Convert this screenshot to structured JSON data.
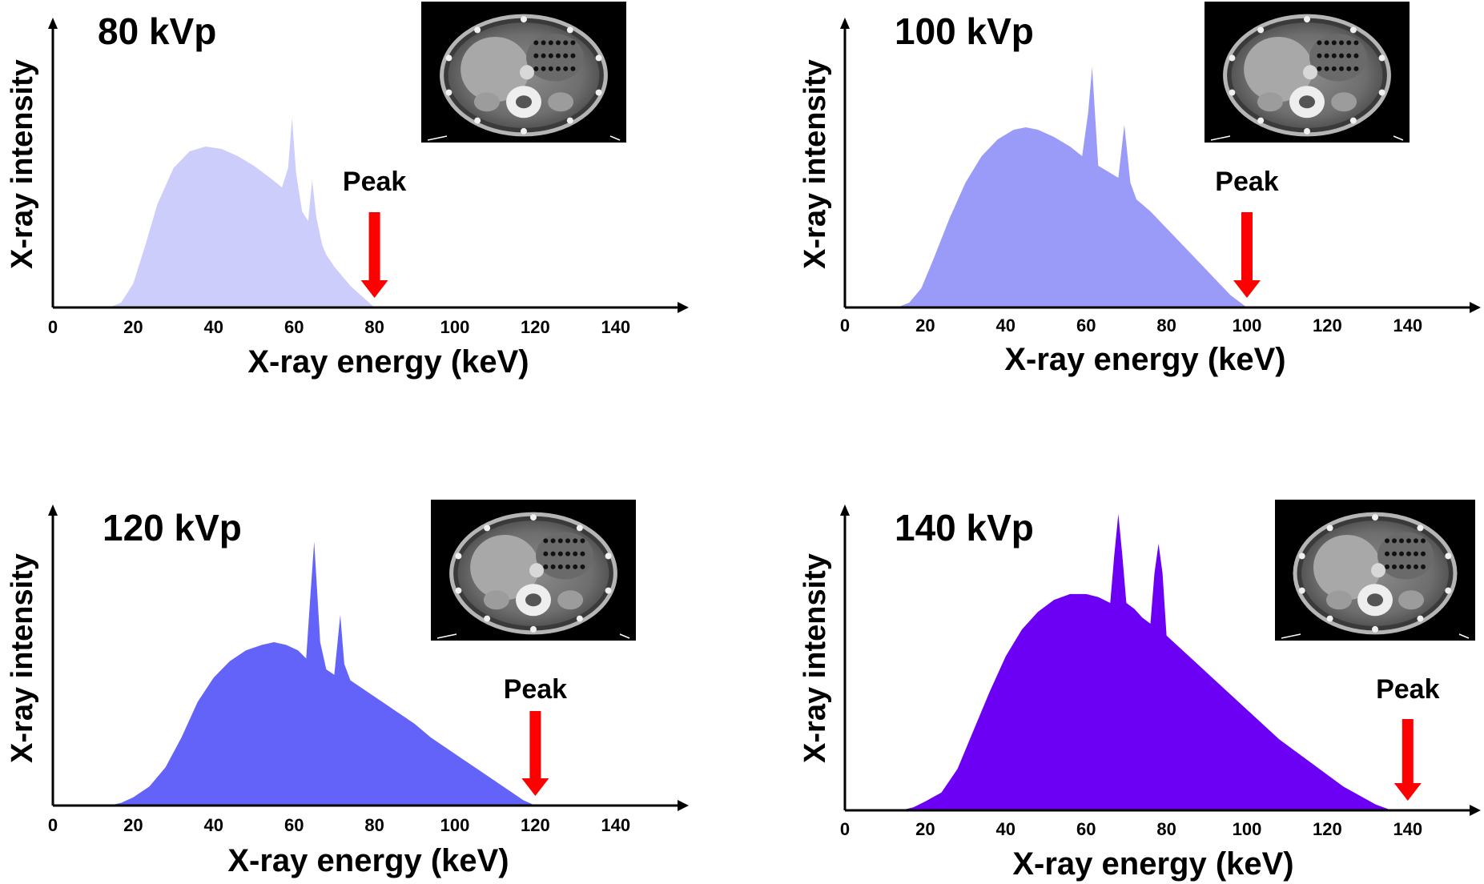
{
  "chart_data": [
    {
      "type": "area",
      "title": "80 kVp",
      "xlabel": "X-ray energy (keV)",
      "ylabel": "X-ray intensity",
      "xlim": [
        0,
        150
      ],
      "ylim": [
        0,
        1
      ],
      "xticks": [
        "0",
        "20",
        "40",
        "60",
        "80",
        "100",
        "120",
        "140"
      ],
      "color": "#cdcdfb",
      "annotation": "Peak",
      "peak_kvp": 80,
      "series": [
        {
          "x": [
            14,
            17,
            20,
            23,
            26,
            30,
            34,
            38,
            42,
            46,
            50,
            54,
            57,
            58.5,
            59.5,
            60.5,
            62,
            63.5,
            64.5,
            65.5,
            67,
            68,
            70,
            74,
            78,
            80
          ],
          "y": [
            0.0,
            0.02,
            0.1,
            0.26,
            0.43,
            0.58,
            0.65,
            0.67,
            0.66,
            0.63,
            0.59,
            0.54,
            0.5,
            0.58,
            0.79,
            0.56,
            0.4,
            0.36,
            0.53,
            0.38,
            0.26,
            0.22,
            0.17,
            0.09,
            0.03,
            0.0
          ]
        }
      ]
    },
    {
      "type": "area",
      "title": "100 kVp",
      "xlabel": "X-ray energy (keV)",
      "ylabel": "X-ray intensity",
      "xlim": [
        0,
        150
      ],
      "ylim": [
        0,
        1
      ],
      "xticks": [
        "0",
        "20",
        "40",
        "60",
        "80",
        "100",
        "120",
        "140"
      ],
      "color": "#9a9af9",
      "annotation": "Peak",
      "peak_kvp": 100,
      "series": [
        {
          "x": [
            13,
            16,
            19,
            22,
            26,
            30,
            34,
            38,
            42,
            45,
            48,
            52,
            56,
            59,
            60.5,
            61.5,
            63,
            66,
            68,
            69.5,
            71,
            72.5,
            76,
            80,
            84,
            88,
            92,
            96,
            100
          ],
          "y": [
            0.0,
            0.02,
            0.08,
            0.2,
            0.37,
            0.52,
            0.63,
            0.7,
            0.74,
            0.75,
            0.74,
            0.71,
            0.67,
            0.63,
            0.81,
            1.0,
            0.59,
            0.56,
            0.54,
            0.76,
            0.52,
            0.45,
            0.4,
            0.33,
            0.26,
            0.19,
            0.12,
            0.05,
            0.0
          ]
        }
      ]
    },
    {
      "type": "area",
      "title": "120 kVp",
      "xlabel": "X-ray energy (keV)",
      "ylabel": "X-ray intensity",
      "xlim": [
        0,
        150
      ],
      "ylim": [
        0,
        1
      ],
      "xticks": [
        "0",
        "20",
        "40",
        "60",
        "80",
        "100",
        "120",
        "140"
      ],
      "color": "#6363fa",
      "annotation": "Peak",
      "peak_kvp": 120,
      "series": [
        {
          "x": [
            14,
            17,
            20,
            24,
            28,
            32,
            36,
            40,
            44,
            48,
            52,
            55,
            58,
            61,
            63,
            64,
            65,
            66.5,
            68,
            70,
            71.5,
            72.5,
            74,
            78,
            82,
            86,
            90,
            94,
            98,
            102,
            106,
            110,
            114,
            117,
            120
          ],
          "y": [
            0.0,
            0.01,
            0.03,
            0.07,
            0.14,
            0.25,
            0.38,
            0.47,
            0.53,
            0.57,
            0.59,
            0.6,
            0.59,
            0.57,
            0.54,
            0.76,
            0.97,
            0.6,
            0.5,
            0.48,
            0.7,
            0.52,
            0.46,
            0.42,
            0.38,
            0.34,
            0.3,
            0.25,
            0.21,
            0.17,
            0.13,
            0.09,
            0.05,
            0.02,
            0.0
          ]
        }
      ]
    },
    {
      "type": "area",
      "title": "140 kVp",
      "xlabel": "X-ray energy (keV)",
      "ylabel": "X-ray intensity",
      "xlim": [
        0,
        150
      ],
      "ylim": [
        0,
        1
      ],
      "xticks": [
        "0",
        "20",
        "40",
        "60",
        "80",
        "100",
        "120",
        "140"
      ],
      "color": "#6c00f5",
      "annotation": "Peak",
      "peak_kvp": 140,
      "series": [
        {
          "x": [
            14,
            17,
            20,
            24,
            28,
            32,
            36,
            40,
            44,
            48,
            52,
            56,
            60,
            63,
            66,
            67,
            68,
            69,
            70,
            72,
            74,
            76,
            77,
            78,
            79,
            80,
            84,
            88,
            92,
            96,
            100,
            104,
            108,
            112,
            116,
            120,
            124,
            128,
            132,
            136
          ],
          "y": [
            0.0,
            0.01,
            0.03,
            0.06,
            0.14,
            0.27,
            0.4,
            0.52,
            0.61,
            0.67,
            0.71,
            0.73,
            0.73,
            0.72,
            0.7,
            0.86,
            1.0,
            0.86,
            0.7,
            0.68,
            0.65,
            0.63,
            0.8,
            0.9,
            0.8,
            0.59,
            0.54,
            0.49,
            0.44,
            0.39,
            0.34,
            0.29,
            0.24,
            0.2,
            0.16,
            0.12,
            0.08,
            0.05,
            0.02,
            0.0
          ]
        }
      ]
    }
  ]
}
